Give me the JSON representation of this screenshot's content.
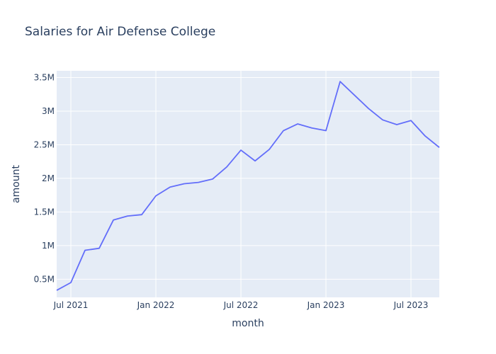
{
  "chart_data": {
    "type": "line",
    "title": "Salaries for Air Defense College",
    "xlabel": "month",
    "ylabel": "amount",
    "x": [
      "2021-06",
      "2021-07",
      "2021-08",
      "2021-09",
      "2021-10",
      "2021-11",
      "2021-12",
      "2022-01",
      "2022-02",
      "2022-03",
      "2022-04",
      "2022-05",
      "2022-06",
      "2022-07",
      "2022-08",
      "2022-09",
      "2022-10",
      "2022-11",
      "2022-12",
      "2023-01",
      "2023-02",
      "2023-03",
      "2023-04",
      "2023-05",
      "2023-06",
      "2023-07",
      "2023-08",
      "2023-09"
    ],
    "series": [
      {
        "values": [
          335000,
          450000,
          930000,
          960000,
          1380000,
          1440000,
          1460000,
          1740000,
          1870000,
          1920000,
          1940000,
          1990000,
          2170000,
          2420000,
          2260000,
          2430000,
          2710000,
          2810000,
          2750000,
          2710000,
          3440000,
          3240000,
          3040000,
          2870000,
          2800000,
          2860000,
          2630000,
          2460000
        ],
        "color": "#636efa"
      }
    ],
    "x_ticks": [
      {
        "label": "Jul 2021",
        "x": "2021-07"
      },
      {
        "label": "Jan 2022",
        "x": "2022-01"
      },
      {
        "label": "Jul 2022",
        "x": "2022-07"
      },
      {
        "label": "Jan 2023",
        "x": "2023-01"
      },
      {
        "label": "Jul 2023",
        "x": "2023-07"
      }
    ],
    "y_ticks": [
      {
        "label": "0.5M",
        "value": 500000
      },
      {
        "label": "1M",
        "value": 1000000
      },
      {
        "label": "1.5M",
        "value": 1500000
      },
      {
        "label": "2M",
        "value": 2000000
      },
      {
        "label": "2.5M",
        "value": 2500000
      },
      {
        "label": "3M",
        "value": 3000000
      },
      {
        "label": "3.5M",
        "value": 3500000
      }
    ],
    "xlim": [
      "2021-06",
      "2023-09"
    ],
    "ylim": [
      230000,
      3600000
    ],
    "grid": true,
    "plot_bg": "#e5ecf6",
    "grid_color": "#ffffff"
  }
}
